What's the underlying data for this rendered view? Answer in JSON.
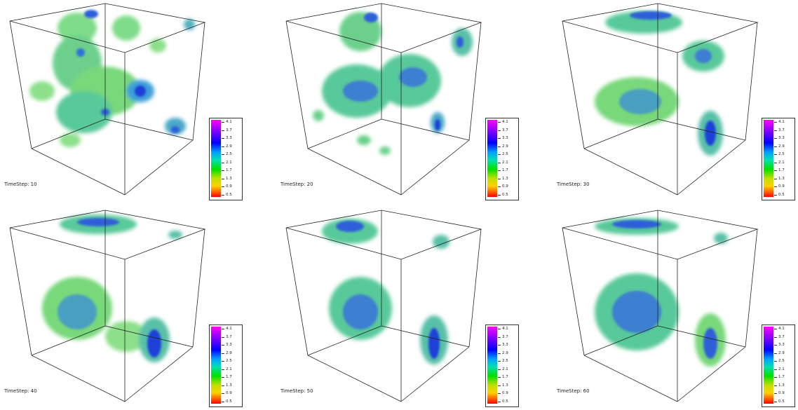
{
  "panels": [
    {
      "timestep": "TimeStep: 10"
    },
    {
      "timestep": "TimeStep: 20"
    },
    {
      "timestep": "TimeStep: 30"
    },
    {
      "timestep": "TimeStep: 40"
    },
    {
      "timestep": "TimeStep: 50"
    },
    {
      "timestep": "TimeStep: 60"
    }
  ],
  "colorbar": {
    "labels": [
      "4.1",
      "3.7",
      "3.3",
      "2.9",
      "2.5",
      "2.1",
      "1.7",
      "1.3",
      "0.9",
      "0.5"
    ]
  },
  "colors": {
    "high": "#ff00ff",
    "mid_high": "#0000ff",
    "mid": "#00e000",
    "low": "#ffd000",
    "min": "#ff0000"
  }
}
